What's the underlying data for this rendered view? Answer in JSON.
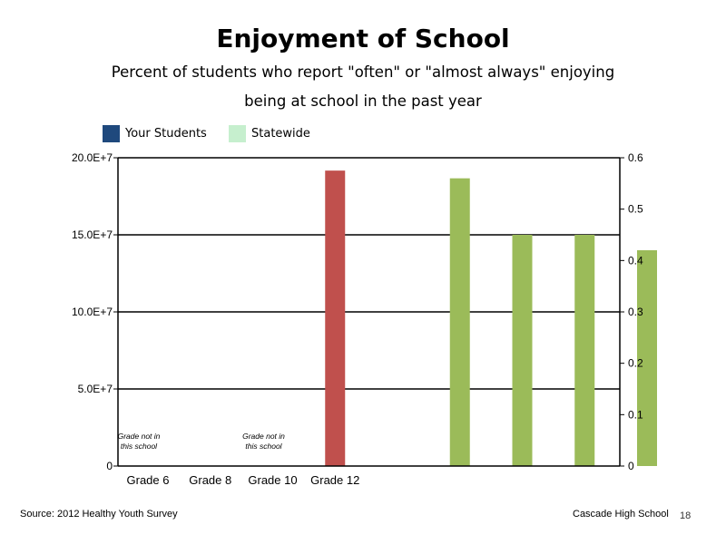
{
  "title": "Enjoyment of School",
  "subtitle": "Percent of students who report \"often\" or \"almost always\" enjoying being at school in the past year",
  "legend": [
    {
      "label": "Your Students",
      "color": "#1f497d"
    },
    {
      "label": "Statewide",
      "color": "#c6efce"
    }
  ],
  "footer": {
    "source": "Source: 2012 Healthy Youth Survey",
    "school": "Cascade High School",
    "page": "18"
  },
  "chart_data": {
    "type": "bar",
    "categories": [
      "Grade 6",
      "Grade 8",
      "Grade 10",
      "Grade 12"
    ],
    "left_axis": {
      "ylim": [
        0,
        200000000
      ],
      "ticks": [
        0,
        50000000,
        100000000,
        150000000,
        200000000
      ],
      "tick_labels": [
        "0",
        "5.0E+7",
        "10.0E+7",
        "15.0E+7",
        "20.0E+7"
      ]
    },
    "right_axis": {
      "ylim": [
        0,
        0.6
      ],
      "ticks": [
        0,
        0.1,
        0.2,
        0.3,
        0.4,
        0.5,
        0.6
      ],
      "tick_labels": [
        "0",
        "0.1",
        "0.2",
        "0.3",
        "0.4",
        "0.5",
        "0.6"
      ]
    },
    "grid": true,
    "legend_position": "top-left",
    "annotations": [
      {
        "category": "Grade 6",
        "text": "Grade not in this school"
      },
      {
        "category": "Grade 10",
        "text": "Grade not in this school"
      }
    ],
    "bars": [
      {
        "slot": 3,
        "axis": "right",
        "value": 0.575,
        "color": "#c0504d"
      },
      {
        "slot": 5,
        "axis": "right",
        "value": 0.56,
        "color": "#9bbb59"
      },
      {
        "slot": 6,
        "axis": "right",
        "value": 0.45,
        "color": "#9bbb59"
      },
      {
        "slot": 7,
        "axis": "right",
        "value": 0.45,
        "color": "#9bbb59"
      },
      {
        "slot": 8,
        "axis": "right",
        "value": 0.42,
        "color": "#9bbb59"
      }
    ]
  }
}
